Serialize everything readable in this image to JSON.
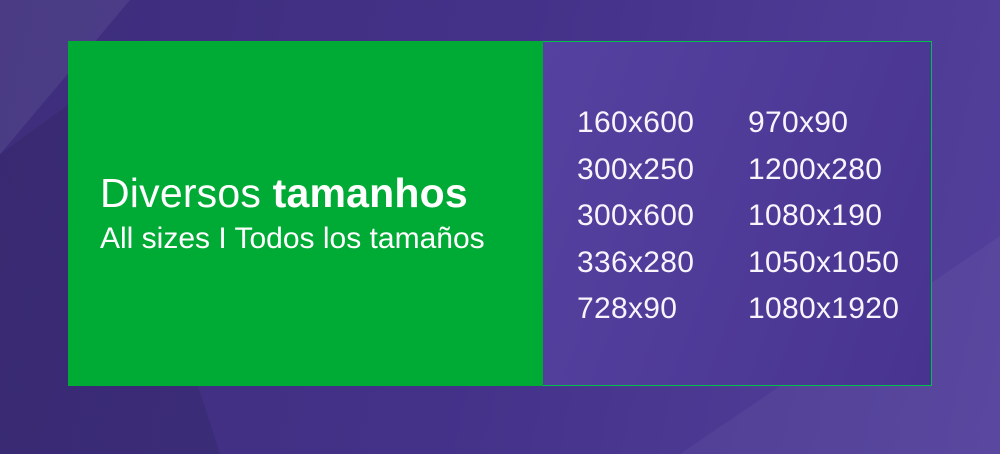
{
  "banner": {
    "title_regular": "Diversos",
    "title_bold": "tamanhos",
    "subtitle": "All sizes I Todos los tamaños",
    "sizes": {
      "column1": [
        "160x600",
        "300x250",
        "300x600",
        "336x280",
        "728x90"
      ],
      "column2": [
        "970x90",
        "1200x280",
        "1080x190",
        "1050x1050",
        "1080x1920"
      ]
    },
    "colors": {
      "green": "#00ab35",
      "green_border": "#00c14b",
      "panel_purple_light": "#55419f",
      "panel_purple_dark": "#483490",
      "background_purple": "#443289",
      "text_white": "#ffffff"
    }
  }
}
